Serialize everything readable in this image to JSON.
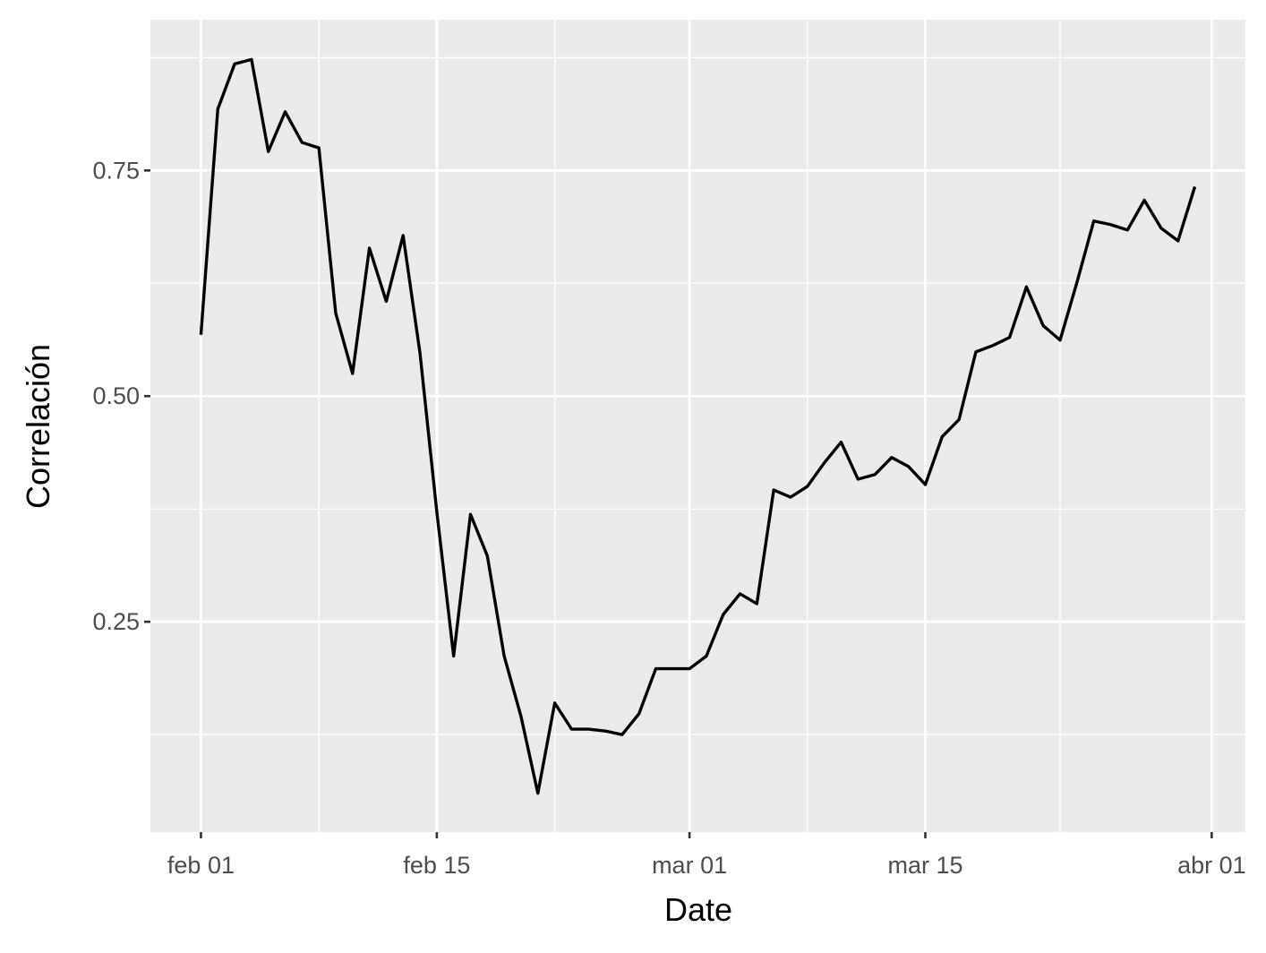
{
  "chart_data": {
    "type": "line",
    "title": "",
    "xlabel": "Date",
    "ylabel": "Correlación",
    "x_ticks": [
      {
        "date": "2024-02-01",
        "label": "feb 01"
      },
      {
        "date": "2024-02-15",
        "label": "feb 15"
      },
      {
        "date": "2024-03-01",
        "label": "mar 01"
      },
      {
        "date": "2024-03-15",
        "label": "mar 15"
      },
      {
        "date": "2024-04-01",
        "label": "abr 01"
      }
    ],
    "y_ticks": [
      {
        "value": 0.25,
        "label": "0.25"
      },
      {
        "value": 0.5,
        "label": "0.50"
      },
      {
        "value": 0.75,
        "label": "0.75"
      }
    ],
    "xlim": [
      "2024-01-29",
      "2024-04-03"
    ],
    "ylim": [
      0.017,
      0.917
    ],
    "grid": true,
    "series": [
      {
        "color": "#000000",
        "x": [
          "2024-02-01",
          "2024-02-02",
          "2024-02-03",
          "2024-02-04",
          "2024-02-05",
          "2024-02-06",
          "2024-02-07",
          "2024-02-08",
          "2024-02-09",
          "2024-02-10",
          "2024-02-11",
          "2024-02-12",
          "2024-02-13",
          "2024-02-14",
          "2024-02-15",
          "2024-02-16",
          "2024-02-17",
          "2024-02-18",
          "2024-02-19",
          "2024-02-20",
          "2024-02-21",
          "2024-02-22",
          "2024-02-23",
          "2024-02-24",
          "2024-02-25",
          "2024-02-26",
          "2024-02-27",
          "2024-02-28",
          "2024-02-29",
          "2024-03-01",
          "2024-03-02",
          "2024-03-03",
          "2024-03-04",
          "2024-03-05",
          "2024-03-06",
          "2024-03-07",
          "2024-03-08",
          "2024-03-09",
          "2024-03-10",
          "2024-03-11",
          "2024-03-12",
          "2024-03-13",
          "2024-03-14",
          "2024-03-15",
          "2024-03-16",
          "2024-03-17",
          "2024-03-18",
          "2024-03-19",
          "2024-03-20",
          "2024-03-21",
          "2024-03-22",
          "2024-03-23",
          "2024-03-24",
          "2024-03-25",
          "2024-03-26",
          "2024-03-27",
          "2024-03-28",
          "2024-03-29",
          "2024-03-30",
          "2024-03-31"
        ],
        "y": [
          0.568,
          0.818,
          0.868,
          0.873,
          0.771,
          0.815,
          0.781,
          0.775,
          0.592,
          0.525,
          0.664,
          0.605,
          0.678,
          0.548,
          0.372,
          0.212,
          0.369,
          0.323,
          0.212,
          0.145,
          0.06,
          0.16,
          0.131,
          0.131,
          0.129,
          0.125,
          0.148,
          0.198,
          0.198,
          0.198,
          0.212,
          0.258,
          0.281,
          0.27,
          0.396,
          0.388,
          0.4,
          0.426,
          0.449,
          0.408,
          0.413,
          0.432,
          0.422,
          0.402,
          0.455,
          0.474,
          0.549,
          0.556,
          0.565,
          0.621,
          0.578,
          0.562,
          0.626,
          0.694,
          0.69,
          0.684,
          0.717,
          0.686,
          0.672,
          0.732
        ]
      }
    ]
  }
}
